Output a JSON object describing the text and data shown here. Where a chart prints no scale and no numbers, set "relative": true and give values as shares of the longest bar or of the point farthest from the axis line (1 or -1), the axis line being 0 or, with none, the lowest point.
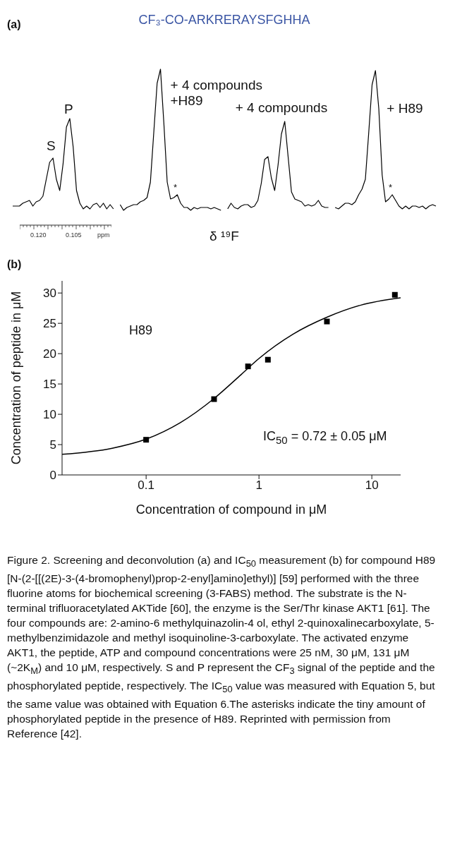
{
  "chart_data": [
    {
      "type": "line",
      "relative": true,
      "title": "CF₃-CO-ARKRERAYSFGHHA",
      "xlabel": "δ ¹⁹F",
      "annotations": [
        "(a)",
        "S",
        "P",
        "*",
        "*",
        "0.120",
        "0.105",
        "ppm"
      ],
      "categories": [
        null,
        null,
        null,
        null,
        null,
        null,
        null,
        null,
        null,
        null,
        null,
        null,
        null,
        null,
        null,
        null,
        null,
        null,
        null,
        null,
        null,
        null,
        null,
        null,
        null,
        null,
        null,
        null,
        null,
        null,
        null,
        null,
        null,
        null,
        null,
        null,
        null,
        null,
        null,
        null,
        null,
        null,
        null,
        null,
        null,
        null,
        null,
        null,
        null,
        null,
        null,
        null,
        null,
        null,
        null,
        null,
        null,
        null,
        null,
        null,
        null,
        null,
        null,
        null,
        null,
        null,
        null,
        null,
        null,
        null,
        null,
        null,
        null,
        null,
        null,
        null,
        null,
        null,
        null,
        null,
        null,
        null,
        null,
        null,
        null,
        null,
        null,
        null,
        null,
        null,
        null,
        null,
        null,
        null,
        null,
        null,
        null,
        null,
        null,
        null,
        null,
        null,
        null,
        null,
        null,
        null,
        null,
        null,
        null,
        null,
        null,
        null,
        null,
        null,
        null,
        null,
        null,
        null,
        null,
        null,
        null,
        null,
        null,
        null,
        null,
        null,
        null
      ],
      "series": [
        {
          "color": "#000000",
          "values": [
            0.03,
            0.03,
            0.03,
            0.05,
            0.06,
            0.07,
            0.03,
            0.06,
            0.07,
            0.1,
            0.22,
            0.34,
            0.37,
            0.22,
            0.14,
            0.33,
            0.59,
            0.65,
            0.45,
            0.14,
            0.05,
            0.01,
            0.03,
            0.01,
            0.04,
            0.05,
            0.02,
            0.05,
            0.01,
            0.04,
            0.01,
            null,
            null,
            null,
            null,
            null,
            null,
            null,
            null,
            null,
            null,
            null,
            null,
            null,
            null,
            null,
            null,
            null,
            null,
            null,
            null,
            null,
            null,
            null,
            null,
            null,
            null,
            null,
            null,
            null,
            null,
            null,
            null,
            null,
            null,
            null,
            null,
            null,
            null,
            null,
            null,
            null,
            null,
            null,
            null,
            null,
            null,
            null,
            null,
            null,
            null,
            null,
            null,
            null,
            null,
            null,
            null,
            null,
            null,
            null,
            null,
            null,
            null,
            null,
            null,
            null,
            null,
            null,
            null,
            null,
            null,
            null,
            null,
            null,
            null,
            null,
            null,
            null,
            null,
            null,
            null,
            null,
            null,
            null,
            null,
            null,
            null,
            null,
            null,
            null,
            null,
            null,
            null,
            null,
            null,
            null,
            null
          ]
        },
        {
          "name": "+ 4 compounds\n+H89",
          "color": "#000000",
          "values": [
            null,
            null,
            null,
            null,
            null,
            null,
            null,
            null,
            null,
            null,
            null,
            null,
            null,
            null,
            null,
            null,
            null,
            null,
            null,
            null,
            null,
            null,
            null,
            null,
            null,
            null,
            null,
            null,
            null,
            null,
            null,
            null,
            0.04,
            0.0,
            0.02,
            0.03,
            0.04,
            0.04,
            0.06,
            0.07,
            0.09,
            0.2,
            0.55,
            0.9,
            1.0,
            0.62,
            0.2,
            0.08,
            0.09,
            0.11,
            0.05,
            0.02,
            0.02,
            0.0,
            0.02,
            0.01,
            0.02,
            0.02,
            0.02,
            0.01,
            0.02,
            0.01,
            0.0,
            null,
            null,
            null,
            null,
            null,
            null,
            null,
            null,
            null,
            null,
            null,
            null,
            null,
            null,
            null,
            null,
            null,
            null,
            null,
            null,
            null,
            null,
            null,
            null,
            null,
            null,
            null,
            null,
            null,
            null,
            null,
            null,
            null,
            null,
            null,
            null,
            null,
            null,
            null,
            null,
            null,
            null,
            null,
            null,
            null,
            null,
            null,
            null,
            null,
            null,
            null,
            null,
            null,
            null,
            null,
            null,
            null,
            null,
            null,
            null,
            null,
            null,
            null,
            null
          ]
        },
        {
          "name": "+ 4 compounds",
          "color": "#000000",
          "values": [
            null,
            null,
            null,
            null,
            null,
            null,
            null,
            null,
            null,
            null,
            null,
            null,
            null,
            null,
            null,
            null,
            null,
            null,
            null,
            null,
            null,
            null,
            null,
            null,
            null,
            null,
            null,
            null,
            null,
            null,
            null,
            null,
            null,
            null,
            null,
            null,
            null,
            null,
            null,
            null,
            null,
            null,
            null,
            null,
            null,
            null,
            null,
            null,
            null,
            null,
            null,
            null,
            null,
            null,
            null,
            null,
            null,
            null,
            null,
            null,
            null,
            null,
            null,
            null,
            0.01,
            0.05,
            0.02,
            0.01,
            0.03,
            0.04,
            0.04,
            0.02,
            0.03,
            0.07,
            0.19,
            0.36,
            0.38,
            0.23,
            0.14,
            0.32,
            0.54,
            0.63,
            0.38,
            0.13,
            0.08,
            0.07,
            0.06,
            0.03,
            0.04,
            0.03,
            0.04,
            0.07,
            0.03,
            0.02,
            0.02,
            null,
            null,
            null,
            null,
            null,
            null,
            null,
            null,
            null,
            null,
            null,
            null,
            null,
            null,
            null,
            null,
            null,
            null,
            null,
            null,
            null,
            null,
            null,
            null,
            null,
            null,
            null,
            null,
            null,
            null,
            null,
            null
          ]
        },
        {
          "name": "+ H89",
          "color": "#000000",
          "values": [
            null,
            null,
            null,
            null,
            null,
            null,
            null,
            null,
            null,
            null,
            null,
            null,
            null,
            null,
            null,
            null,
            null,
            null,
            null,
            null,
            null,
            null,
            null,
            null,
            null,
            null,
            null,
            null,
            null,
            null,
            null,
            null,
            null,
            null,
            null,
            null,
            null,
            null,
            null,
            null,
            null,
            null,
            null,
            null,
            null,
            null,
            null,
            null,
            null,
            null,
            null,
            null,
            null,
            null,
            null,
            null,
            null,
            null,
            null,
            null,
            null,
            null,
            null,
            null,
            null,
            null,
            null,
            null,
            null,
            null,
            null,
            null,
            null,
            null,
            null,
            null,
            null,
            null,
            null,
            null,
            null,
            null,
            null,
            null,
            null,
            null,
            null,
            null,
            null,
            null,
            null,
            null,
            null,
            null,
            null,
            null,
            0.02,
            0.01,
            0.03,
            0.05,
            0.05,
            0.04,
            0.06,
            0.11,
            0.15,
            0.22,
            0.55,
            0.89,
            0.99,
            0.72,
            0.25,
            0.06,
            0.08,
            0.11,
            0.07,
            0.03,
            0.01,
            0.03,
            0.01,
            0.03,
            0.03,
            0.02,
            0.03,
            0.01,
            0.03,
            0.04,
            0.03
          ]
        }
      ]
    },
    {
      "type": "scatter",
      "xlabel": "Concentration of compound in μM",
      "ylabel": "Concentration of peptide in μM",
      "log": "x",
      "marker": "square",
      "xlim": [
        0.018,
        18
      ],
      "xticks": [
        0.1,
        1,
        10
      ],
      "ylim": [
        0,
        32
      ],
      "yticks": [
        0,
        5,
        10,
        15,
        20,
        25,
        30
      ],
      "annotations": [
        "(b)",
        "H89",
        "IC$_{50}$ = 0.72 ± 0.05 μM",
        "Figure 2. Screening and deconvolution (a) and IC$_{50}$ measurement (b) for compound H89 [N-(2-[[(2E)-3-(4-bromophenyl)prop-2-enyl]amino]ethyl)] [59] performed with the three fluorine atoms for biochemical screening (3-FABS) method. The substrate is the N-terminal trifluoracetylated AKTide [60], the enzyme is the Ser/Thr kinase AKT1 [61]. The four compounds are: 2-amino-6 methylquinazolin-4 ol, ethyl 2-quinoxalinecarboxylate, 5-methylbenzimidazole and methyl isoquinoline-3-carboxylate. The activated enzyme AKT1, the peptide, ATP and compound concentrations were 25 nM, 30 μM, 131 μM (~2K$_{M}$) and 10 μM, respectively. S and P represent the CF$_{3}$ signal of the peptide and the phosphorylated peptide, respectively. The IC$_{50}$ value was measured with Equation 5, but the same value was obtained with Equation 6.The asterisks indicate the tiny amount of phosphorylated peptide in the presence of H89. Reprinted with permission from Reference [42]."
      ],
      "series": [
        {
          "color": "#000000",
          "x": [
            0.1,
            0.4,
            0.8,
            1.2,
            4,
            16
          ],
          "values": [
            5.8,
            12.5,
            17.9,
            19.0,
            25.3,
            29.7
          ]
        },
        {
          "type": "line",
          "marker": "none",
          "color": "#000000",
          "x": [
            0.018,
            0.05,
            0.1,
            0.2,
            0.4,
            0.7,
            1,
            2,
            4,
            8,
            18
          ],
          "values": [
            3.4,
            4.4,
            5.9,
            8.6,
            12.6,
            16.6,
            19.2,
            23.2,
            26.0,
            28.0,
            29.2
          ]
        }
      ]
    }
  ]
}
